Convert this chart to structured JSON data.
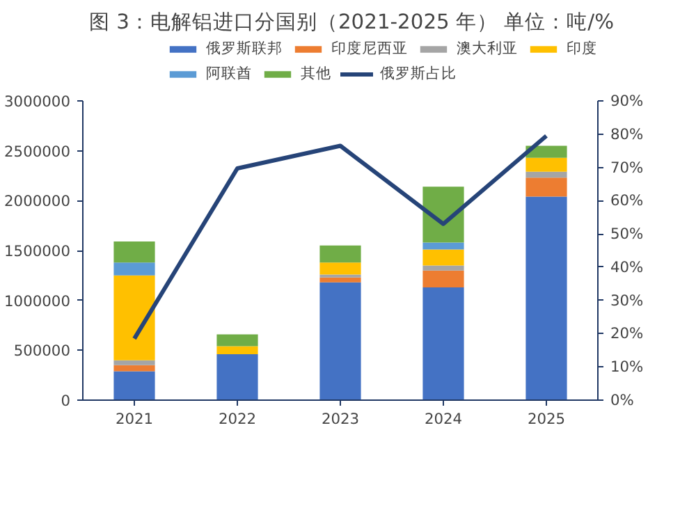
{
  "chart_data": {
    "type": "bar",
    "title": "图 3：电解铝进口分国别（2021-2025 年）    单位：吨/%",
    "categories": [
      "2021",
      "2022",
      "2023",
      "2024",
      "2025"
    ],
    "stacked": true,
    "series": [
      {
        "name": "俄罗斯联邦",
        "color": "#4472c4",
        "values": [
          290000,
          460000,
          1180000,
          1130000,
          2040000
        ]
      },
      {
        "name": "印度尼西亚",
        "color": "#ed7d31",
        "values": [
          60000,
          0,
          50000,
          170000,
          190000
        ]
      },
      {
        "name": "澳大利亚",
        "color": "#a5a5a5",
        "values": [
          50000,
          null,
          30000,
          50000,
          60000
        ]
      },
      {
        "name": "印度",
        "color": "#ffc000",
        "values": [
          850000,
          80000,
          120000,
          160000,
          140000
        ]
      },
      {
        "name": "阿联酋",
        "color": "#5b9bd5",
        "values": [
          130000,
          0,
          0,
          70000,
          0
        ]
      },
      {
        "name": "其他",
        "color": "#70ad47",
        "values": [
          210000,
          120000,
          170000,
          560000,
          120000
        ]
      },
      {
        "name": "俄罗斯占比",
        "color": "#264478",
        "type": "line",
        "axis": "y2",
        "values": [
          18.5,
          69.7,
          76.5,
          53,
          79.5
        ]
      }
    ],
    "ylim": [
      0,
      3000000
    ],
    "yticks": [
      0,
      500000,
      1000000,
      1500000,
      2000000,
      2500000,
      3000000
    ],
    "y2lim": [
      0,
      90
    ],
    "y2ticks": [
      {
        "value": 0,
        "label": "0%"
      },
      {
        "value": 10,
        "label": "10%"
      },
      {
        "value": 20,
        "label": "20%"
      },
      {
        "value": 30,
        "label": "30%"
      },
      {
        "value": 40,
        "label": "40%"
      },
      {
        "value": 50,
        "label": "50%"
      },
      {
        "value": 60,
        "label": "60%"
      },
      {
        "value": 70,
        "label": "70%"
      },
      {
        "value": 80,
        "label": "80%"
      },
      {
        "value": 90,
        "label": "90%"
      }
    ],
    "grid": false,
    "legend": "top"
  }
}
